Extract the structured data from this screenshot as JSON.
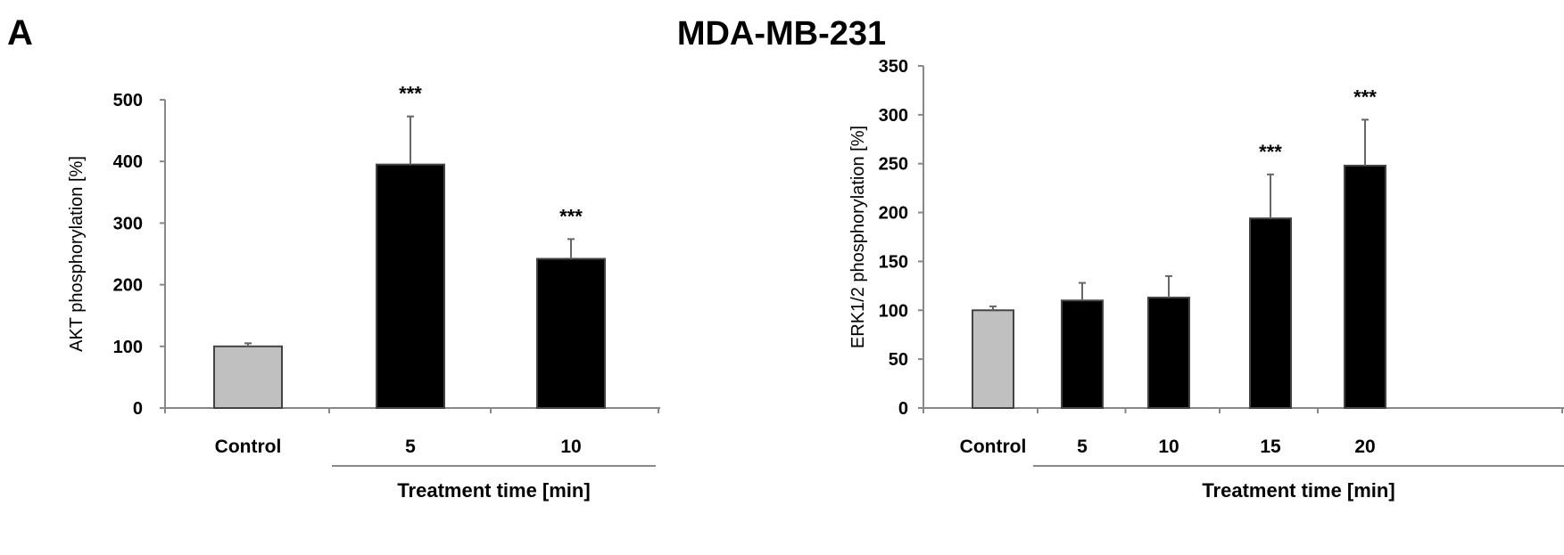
{
  "figure": {
    "panel_label": "A",
    "title": "MDA-MB-231"
  },
  "chart_data": [
    {
      "type": "bar",
      "ylabel": "AKT phosphorylation [%]",
      "xlabel": "Treatment time [min]",
      "ylim": [
        0,
        500
      ],
      "yticks": [
        0,
        100,
        200,
        300,
        400,
        500
      ],
      "categories": [
        "Control",
        "5",
        "10"
      ],
      "values": [
        100,
        395,
        242
      ],
      "errors": [
        5,
        78,
        32
      ],
      "significance": [
        "",
        "***",
        "***"
      ],
      "bar_colors": [
        "#c0c0c0",
        "#000000",
        "#000000"
      ],
      "grid": false
    },
    {
      "type": "bar",
      "ylabel": "ERK1/2 phosphorylation [%]",
      "xlabel": "Treatment time [min]",
      "ylim": [
        0,
        350
      ],
      "yticks": [
        0,
        50,
        100,
        150,
        200,
        250,
        300,
        350
      ],
      "categories": [
        "Control",
        "5",
        "10",
        "15",
        "20"
      ],
      "values": [
        100,
        110,
        113,
        194,
        248
      ],
      "errors": [
        4,
        18,
        22,
        45,
        47
      ],
      "significance": [
        "",
        "",
        "",
        "***",
        "***"
      ],
      "bar_colors": [
        "#c0c0c0",
        "#000000",
        "#000000",
        "#000000",
        "#000000"
      ],
      "grid": false
    }
  ]
}
